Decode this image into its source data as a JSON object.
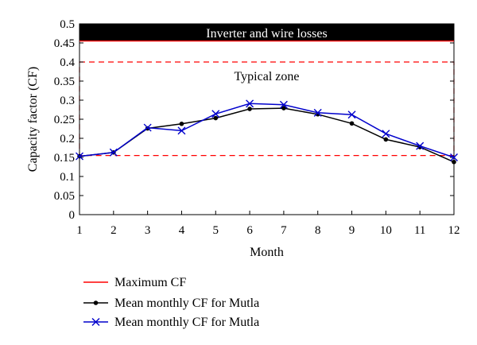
{
  "chart_data": {
    "type": "line",
    "title": "",
    "xlabel": "Month",
    "ylabel": "Capacity factor (CF)",
    "xlim": [
      1,
      12
    ],
    "ylim": [
      0,
      0.5
    ],
    "x_ticks": [
      "1",
      "2",
      "3",
      "4",
      "5",
      "6",
      "7",
      "8",
      "9",
      "10",
      "11",
      "12"
    ],
    "y_ticks": [
      "0",
      "0.05",
      "0.1",
      "0.15",
      "0.2",
      "0.25",
      "0.3",
      "0.35",
      "0.4",
      "0.45",
      "0.5"
    ],
    "grid": false,
    "legend_position": "below",
    "maximum_cf": 0.455,
    "typical_zone": {
      "lower": 0.155,
      "upper": 0.4
    },
    "annotations": {
      "losses_band": "Inverter and wire losses",
      "typical_zone": "Typical zone"
    },
    "series": [
      {
        "name": "Maximum CF",
        "color": "#ff0000",
        "marker": "none",
        "x": [
          1,
          12
        ],
        "values": [
          0.455,
          0.455
        ]
      },
      {
        "name": "Mean monthly CF for Mutla",
        "color": "#000000",
        "marker": "dot",
        "x": [
          1,
          2,
          3,
          4,
          5,
          6,
          7,
          8,
          9,
          10,
          11,
          12
        ],
        "values": [
          0.153,
          0.163,
          0.226,
          0.238,
          0.253,
          0.277,
          0.279,
          0.263,
          0.239,
          0.197,
          0.177,
          0.138
        ]
      },
      {
        "name": "Mean monthly CF for Mutla",
        "color": "#0000cc",
        "marker": "x",
        "x": [
          1,
          2,
          3,
          4,
          5,
          6,
          7,
          8,
          9,
          10,
          11,
          12
        ],
        "values": [
          0.153,
          0.163,
          0.228,
          0.22,
          0.264,
          0.291,
          0.288,
          0.267,
          0.262,
          0.212,
          0.18,
          0.15
        ]
      }
    ],
    "colors": {
      "losses_band": "#000000",
      "losses_text": "#ffffff",
      "zone_border": "#ff0000",
      "axis": "#000000"
    }
  }
}
